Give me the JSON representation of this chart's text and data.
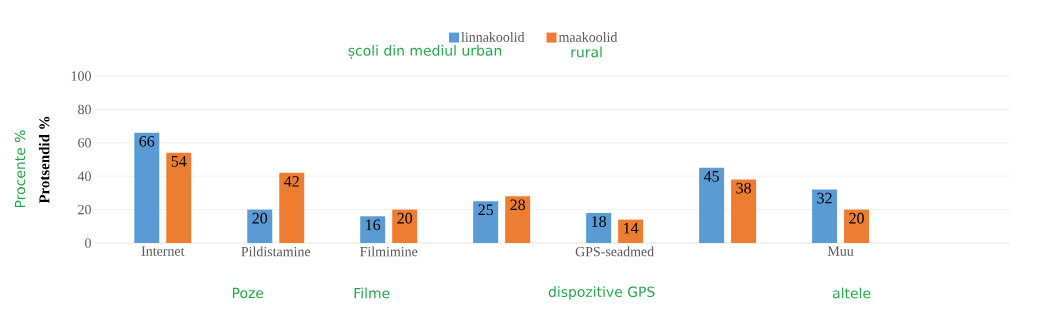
{
  "chart_data": {
    "type": "bar",
    "ylabel": "Protsendid %",
    "categories": [
      "Internet",
      "Pildistamine",
      "Filmimine",
      null,
      "GPS-seadmed",
      null,
      "Muu"
    ],
    "series": [
      {
        "name": "linnakoolid",
        "color": "#5b9bd5",
        "values": [
          66,
          20,
          16,
          25,
          18,
          45,
          32
        ]
      },
      {
        "name": "maakoolid",
        "color": "#ed7d31",
        "values": [
          54,
          42,
          20,
          28,
          14,
          38,
          20
        ]
      }
    ],
    "ylim": [
      0,
      100
    ],
    "yticks": [
      0,
      20,
      40,
      60,
      80,
      100
    ],
    "grid": "y",
    "legend": "top",
    "data_labels": true,
    "annotations": [
      "școli din mediul urban",
      "rural",
      "Procente %",
      "Poze",
      "Filme",
      "dispozitive GPS",
      "altele"
    ]
  }
}
